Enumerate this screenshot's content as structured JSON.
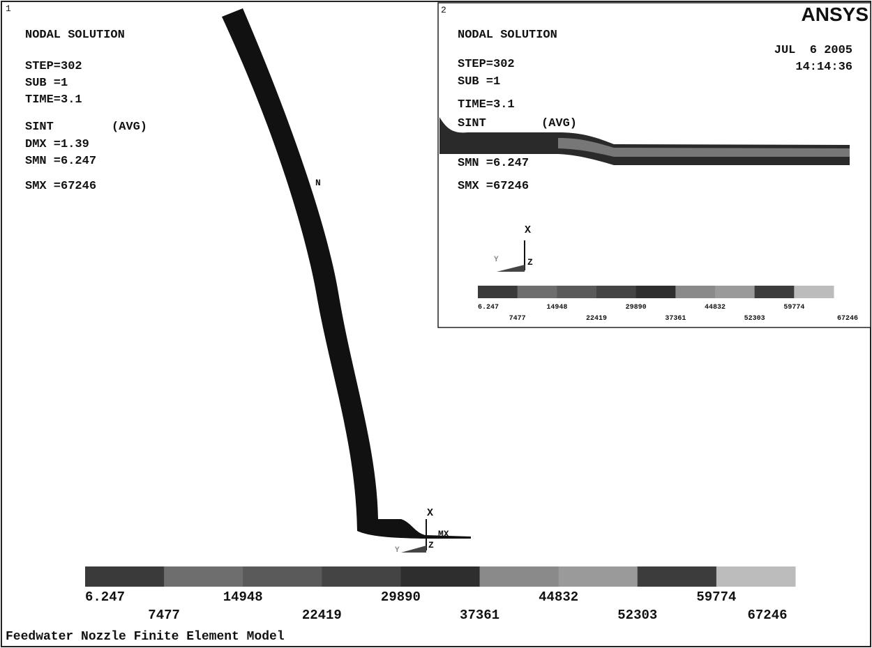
{
  "window1": {
    "number": "1",
    "info": [
      "NODAL SOLUTION",
      "STEP=302",
      "SUB =1",
      "TIME=3.1",
      "SINT",
      "(AVG)",
      "DMX =1.39",
      "SMN =6.247",
      "SMX =67246"
    ],
    "markers": [
      "N",
      "MX"
    ],
    "triad": [
      "X",
      "Y",
      "Z"
    ],
    "legend": [
      "6.247",
      "7477",
      "14948",
      "22419",
      "29890",
      "37361",
      "44832",
      "52303",
      "59774",
      "67246"
    ]
  },
  "window2": {
    "number": "2",
    "logo": "ANSYS",
    "date": "JUL  6 2005",
    "time": "14:14:36",
    "info": [
      "NODAL SOLUTION",
      "STEP=302",
      "SUB =1",
      "TIME=3.1",
      "SINT",
      "(AVG)",
      "SMN =6.247",
      "SMX =67246"
    ],
    "triad": [
      "X",
      "Y",
      "Z"
    ],
    "legend": [
      "6.247",
      "7477",
      "14948",
      "22419",
      "29890",
      "37361",
      "44832",
      "52303",
      "59774",
      "67246"
    ]
  },
  "caption": "Feedwater Nozzle Finite Element Model"
}
